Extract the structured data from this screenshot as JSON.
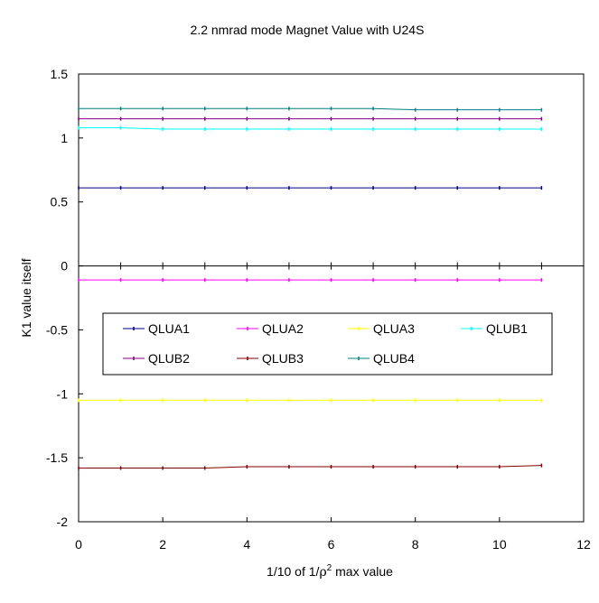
{
  "chart_data": {
    "type": "line",
    "title": "2.2 nmrad mode Magnet Value with U24S",
    "xlabel_prefix": "1/10 of 1/",
    "xlabel_rho": "ρ",
    "xlabel_sup": "2",
    "xlabel_suffix": " max value",
    "ylabel": "K1 value itself",
    "xlim": [
      0,
      12
    ],
    "ylim": [
      -2,
      1.5
    ],
    "x_ticks": [
      0,
      2,
      4,
      6,
      8,
      10,
      12
    ],
    "x_tick_labels": [
      "0",
      "2",
      "4",
      "6",
      "8",
      "10",
      "12"
    ],
    "y_ticks": [
      1.5,
      1,
      0.5,
      0,
      -0.5,
      -1,
      -1.5,
      -2
    ],
    "y_tick_labels": [
      "1.5",
      "1",
      "0.5",
      "0",
      "-0.5",
      "-1",
      "-1.5",
      "-2"
    ],
    "grid": false,
    "legend_position": "center-left",
    "x": [
      0,
      1,
      2,
      3,
      4,
      5,
      6,
      7,
      8,
      9,
      10,
      11
    ],
    "series": [
      {
        "name": "QLUA1",
        "color": "#000080",
        "values": [
          0.61,
          0.61,
          0.61,
          0.61,
          0.61,
          0.61,
          0.61,
          0.61,
          0.61,
          0.61,
          0.61,
          0.61
        ]
      },
      {
        "name": "QLUA2",
        "color": "#FF00FF",
        "values": [
          -0.11,
          -0.11,
          -0.11,
          -0.11,
          -0.11,
          -0.11,
          -0.11,
          -0.11,
          -0.11,
          -0.11,
          -0.11,
          -0.11
        ]
      },
      {
        "name": "QLUA3",
        "color": "#FFFF00",
        "values": [
          -1.05,
          -1.05,
          -1.05,
          -1.05,
          -1.05,
          -1.05,
          -1.05,
          -1.05,
          -1.05,
          -1.05,
          -1.05,
          -1.05
        ]
      },
      {
        "name": "QLUB1",
        "color": "#00FFFF",
        "values": [
          1.08,
          1.08,
          1.07,
          1.07,
          1.07,
          1.07,
          1.07,
          1.07,
          1.07,
          1.07,
          1.07,
          1.07
        ]
      },
      {
        "name": "QLUB2",
        "color": "#800080",
        "values": [
          1.15,
          1.15,
          1.15,
          1.15,
          1.15,
          1.15,
          1.15,
          1.15,
          1.15,
          1.15,
          1.15,
          1.15
        ]
      },
      {
        "name": "QLUB3",
        "color": "#800000",
        "values": [
          -1.58,
          -1.58,
          -1.58,
          -1.58,
          -1.57,
          -1.57,
          -1.57,
          -1.57,
          -1.57,
          -1.57,
          -1.57,
          -1.56
        ]
      },
      {
        "name": "QLUB4",
        "color": "#008080",
        "values": [
          1.23,
          1.23,
          1.23,
          1.23,
          1.23,
          1.23,
          1.23,
          1.23,
          1.22,
          1.22,
          1.22,
          1.22
        ]
      }
    ]
  }
}
